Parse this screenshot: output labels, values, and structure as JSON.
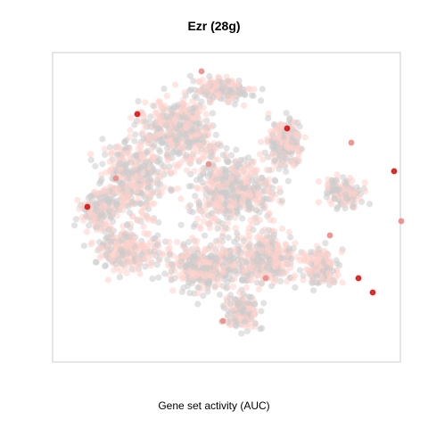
{
  "chart_data": {
    "type": "scatter",
    "title": "Ezr (28g)",
    "xlabel": "Gene set activity (AUC)",
    "ylabel": "",
    "grid": false,
    "legend": "none",
    "colors": {
      "inactive": "#cccccc",
      "low": "#ffd2cc",
      "mid": "#f08a84",
      "high": "#e01010",
      "frame": "#cccccc"
    },
    "x": [
      -1.2,
      0.9,
      -1.9,
      1.8,
      -0.3,
      -1.5,
      0.6,
      1.5,
      2.4,
      2.5,
      0.0,
      -0.2,
      1.9,
      2.1
    ],
    "y": [
      1.3,
      1.1,
      0.0,
      0.9,
      1.9,
      0.4,
      -1.0,
      -0.4,
      0.5,
      -0.2,
      -1.6,
      0.6,
      -1.0,
      -1.2
    ],
    "values": [
      0.85,
      0.9,
      0.8,
      0.75,
      0.7,
      0.7,
      0.6,
      0.75,
      0.8,
      0.65,
      0.5,
      0.55,
      0.9,
      0.85
    ]
  }
}
